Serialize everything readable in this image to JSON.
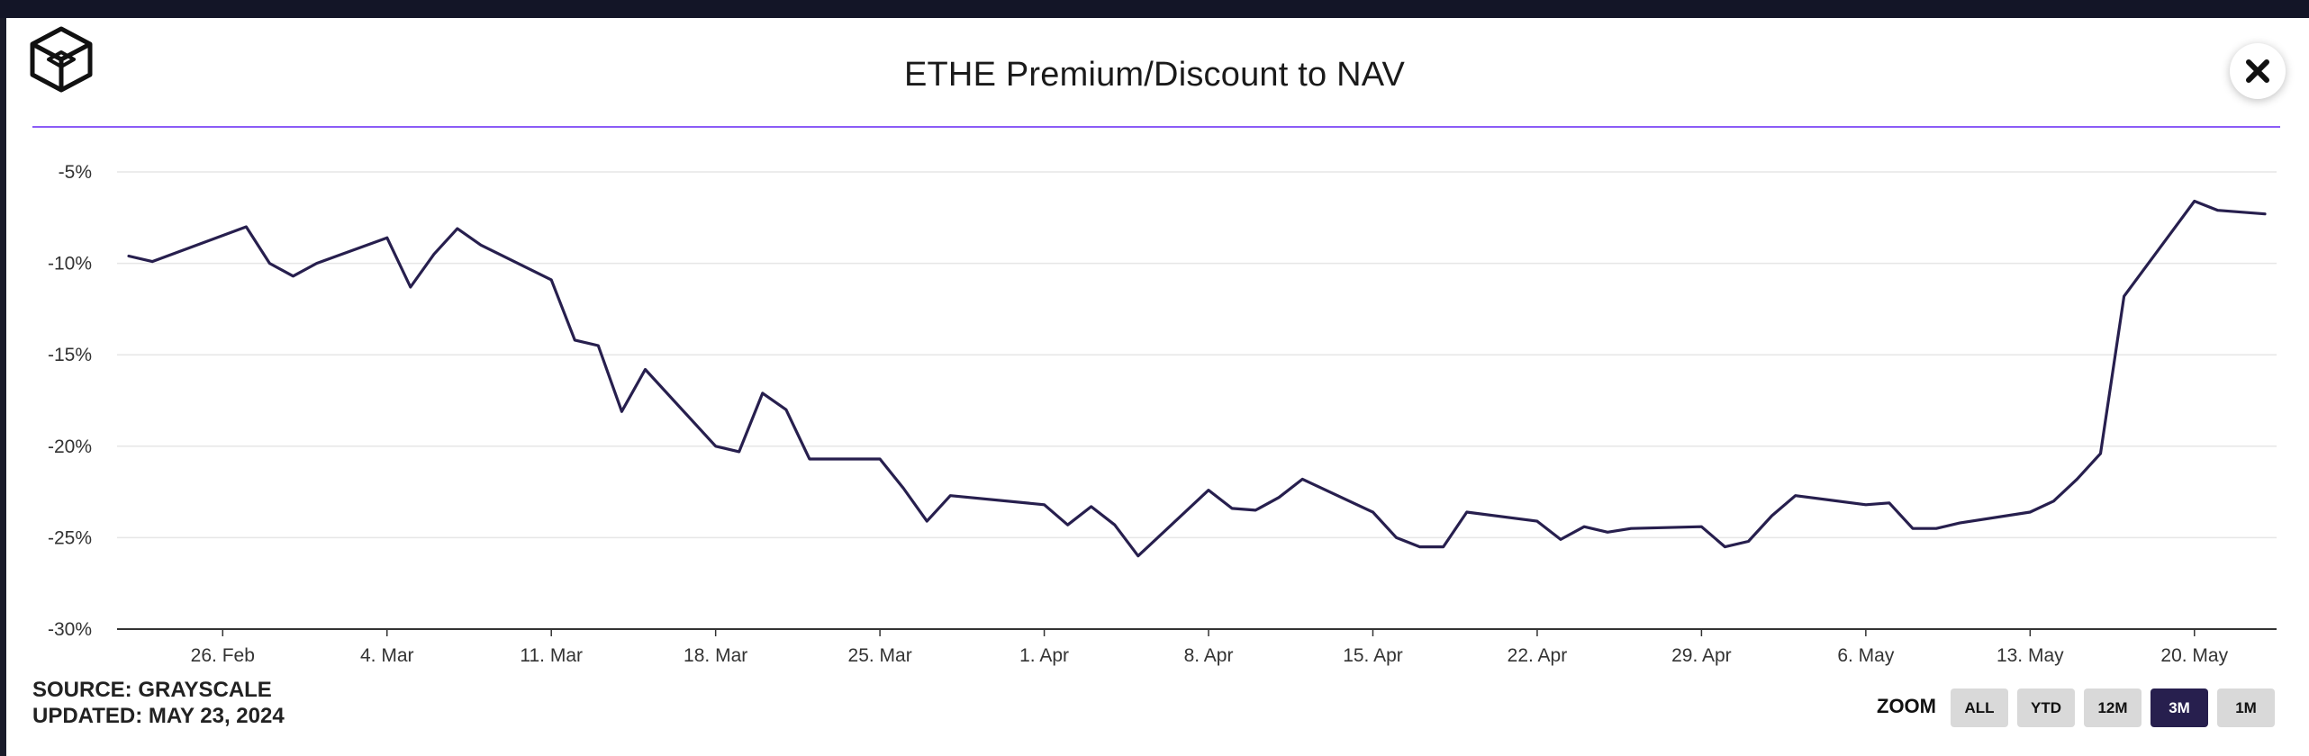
{
  "header": {
    "title": "ETHE Premium/Discount to NAV"
  },
  "colors": {
    "accent": "#8b5cf6",
    "line": "#271f4e",
    "button_active": "#271f4e",
    "button_idle": "#d9d9d9"
  },
  "icons": {
    "logo": "grayscale-cube-icon",
    "close": "close-icon"
  },
  "footer": {
    "source": "SOURCE: GRAYSCALE",
    "updated": "UPDATED: MAY 23, 2024"
  },
  "zoom": {
    "label": "ZOOM",
    "buttons": [
      "ALL",
      "YTD",
      "12M",
      "3M",
      "1M"
    ],
    "selected": "3M"
  },
  "chart_data": {
    "type": "line",
    "title": "ETHE Premium/Discount to NAV",
    "xlabel": "",
    "ylabel": "",
    "ylim": [
      -30,
      -5
    ],
    "yticks": [
      -5,
      -10,
      -15,
      -20,
      -25,
      -30
    ],
    "ytick_labels": [
      "-5%",
      "-10%",
      "-15%",
      "-20%",
      "-25%",
      "-30%"
    ],
    "xlim": [
      -4.5,
      87.5
    ],
    "xticks": [
      0,
      7,
      14,
      21,
      28,
      35,
      42,
      49,
      56,
      63,
      70,
      77,
      84
    ],
    "xtick_labels": [
      "26. Feb",
      "4. Mar",
      "11. Mar",
      "18. Mar",
      "25. Mar",
      "1. Apr",
      "8. Apr",
      "15. Apr",
      "22. Apr",
      "29. Apr",
      "6. May",
      "13. May",
      "20. May"
    ],
    "x_unit": "days since 26 Feb 2024",
    "grid": true,
    "legend": "none",
    "series": [
      {
        "name": "ETHE Premium/Discount",
        "x": [
          -4,
          -3,
          1,
          2,
          3,
          4,
          7,
          8,
          9,
          10,
          11,
          14,
          15,
          16,
          17,
          18,
          21,
          22,
          23,
          24,
          25,
          28,
          29,
          30,
          31,
          35,
          36,
          37,
          38,
          39,
          42,
          43,
          44,
          45,
          46,
          49,
          50,
          51,
          52,
          53,
          56,
          57,
          58,
          59,
          60,
          63,
          64,
          65,
          66,
          67,
          70,
          71,
          72,
          73,
          74,
          77,
          78,
          79,
          80,
          81,
          84,
          85,
          86,
          87
        ],
        "values": [
          -9.6,
          -9.9,
          -8.0,
          -10.0,
          -10.7,
          -10.0,
          -8.6,
          -11.3,
          -9.5,
          -8.1,
          -9.0,
          -10.9,
          -14.2,
          -14.5,
          -18.1,
          -15.8,
          -20.0,
          -20.3,
          -17.1,
          -18.0,
          -20.7,
          -20.7,
          -22.3,
          -24.1,
          -22.7,
          -23.2,
          -24.3,
          -23.3,
          -24.3,
          -26.0,
          -22.4,
          -23.4,
          -23.5,
          -22.8,
          -21.8,
          -23.6,
          -25.0,
          -25.5,
          -25.5,
          -23.6,
          -24.1,
          -25.1,
          -24.4,
          -24.7,
          -24.5,
          -24.4,
          -25.5,
          -25.2,
          -23.8,
          -22.7,
          -23.2,
          -23.1,
          -24.5,
          -24.5,
          -24.2,
          -23.6,
          -23.0,
          -21.8,
          -20.4,
          -11.8,
          -6.6,
          -7.1,
          -7.2,
          -7.3
        ]
      }
    ]
  }
}
